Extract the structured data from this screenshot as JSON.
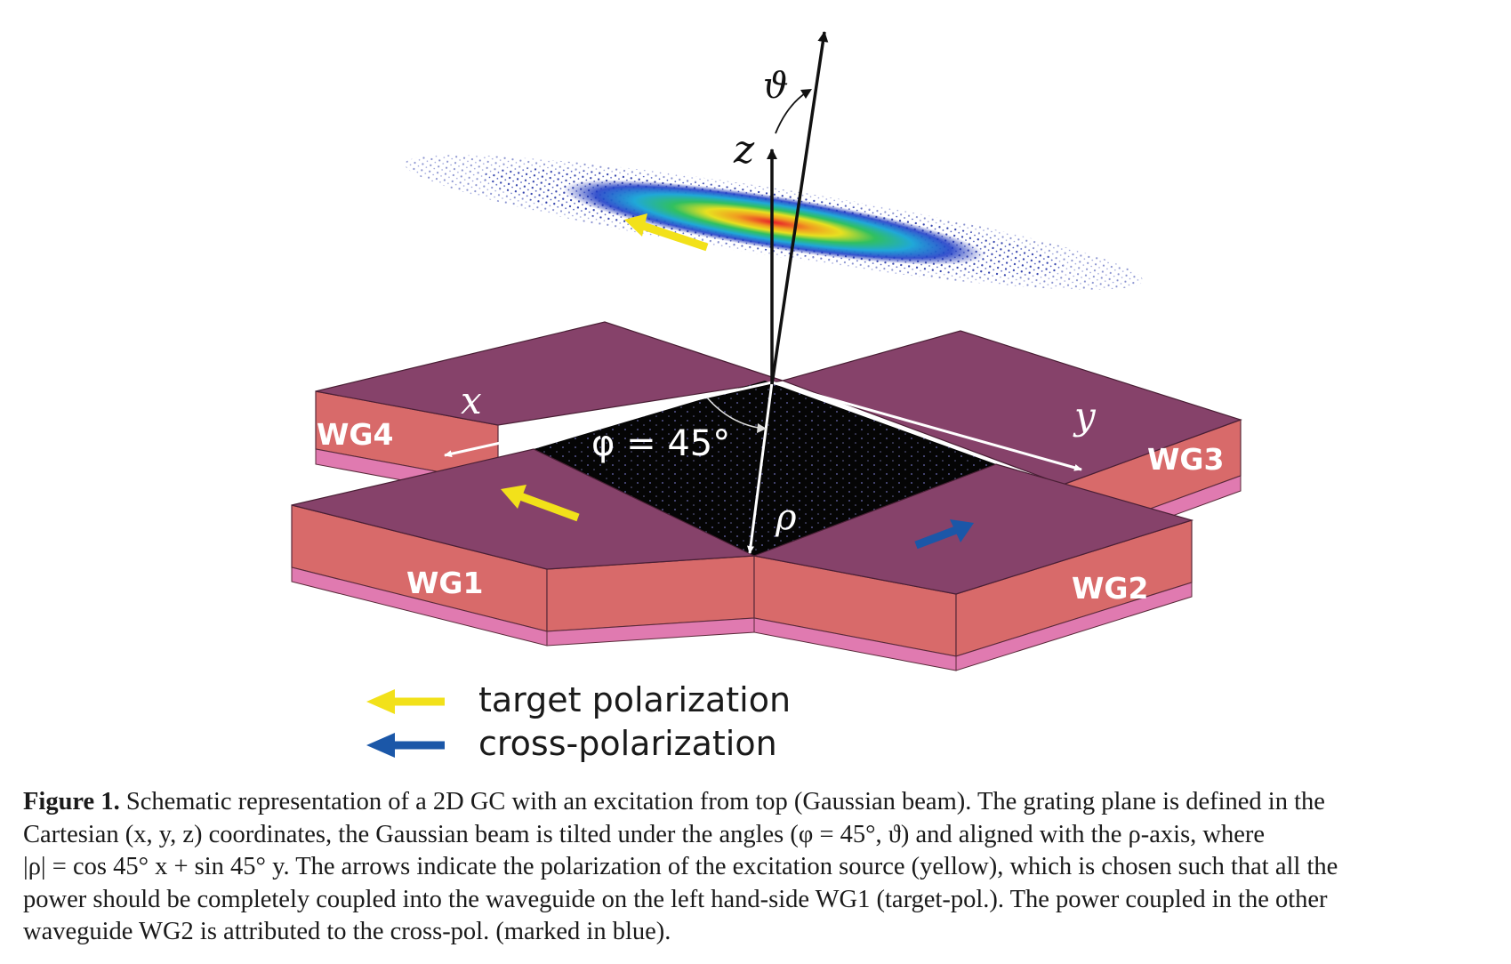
{
  "figure": {
    "axis_labels": {
      "z": "z",
      "theta": "ϑ",
      "x": "x",
      "y": "y",
      "rho": "ρ",
      "phi_angle": "φ = 45°"
    },
    "waveguides": {
      "wg1": "WG1",
      "wg2": "WG2",
      "wg3": "WG3",
      "wg4": "WG4"
    },
    "legend": {
      "target": "target polarization",
      "cross": "cross-polarization"
    },
    "colors": {
      "waveguide_top": "#86426a",
      "waveguide_side": "#d86a6a",
      "substrate": "#e07ab0",
      "target_arrow": "#f2e11a",
      "cross_arrow": "#1b57a8"
    }
  },
  "caption": {
    "fig_label": "Figure 1.",
    "line1": " Schematic representation of a 2D GC with an excitation from top (Gaussian beam). The grating plane is defined in the",
    "line2": "Cartesian (x, y, z) coordinates, the Gaussian beam is tilted under the angles (φ = 45°, ϑ) and aligned with the ρ-axis, where",
    "line3": "|ρ| = cos 45° x + sin 45° y. The arrows indicate the polarization of the excitation source (yellow), which is chosen such that all the",
    "line4": "power should be completely coupled into the waveguide on the left hand-side WG1 (target-pol.). The power coupled in the other",
    "line5": "waveguide WG2 is attributed to the cross-pol. (marked in blue)."
  }
}
